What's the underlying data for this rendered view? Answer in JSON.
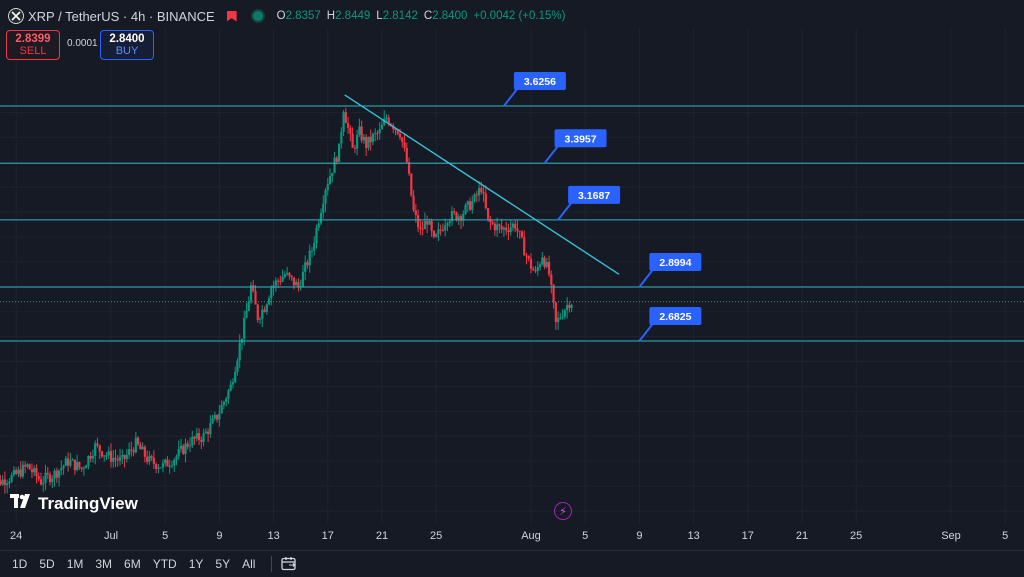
{
  "header": {
    "symbol": "XRP / TetherUS · 4h · BINANCE",
    "ohlc": [
      {
        "k": "O",
        "v": "2.8357"
      },
      {
        "k": "H",
        "v": "2.8449"
      },
      {
        "k": "L",
        "v": "2.8142"
      },
      {
        "k": "C",
        "v": "2.8400"
      },
      {
        "k": "",
        "v": "+0.0042 (+0.15%)"
      }
    ]
  },
  "trade": {
    "sell_price": "2.8399",
    "sell_label": "SELL",
    "spread": "0.0001",
    "buy_price": "2.8400",
    "buy_label": "BUY"
  },
  "branding": {
    "logo_text": "TradingView"
  },
  "toolbar": {
    "timeframes": [
      "1D",
      "5D",
      "1M",
      "3M",
      "6M",
      "YTD",
      "1Y",
      "5Y",
      "All"
    ],
    "icons": [
      "calendar-range-icon"
    ]
  },
  "colors": {
    "background": "#161a25",
    "up": "#089981",
    "down": "#f23645",
    "level_line": "#2fb5c5",
    "label_bg": "#2962ff"
  },
  "chart_data": {
    "type": "candlestick",
    "x_tick_labels": [
      "24",
      "Jul",
      "5",
      "9",
      "13",
      "17",
      "21",
      "25",
      "Aug",
      "5",
      "9",
      "13",
      "17",
      "21",
      "25",
      "Sep",
      "5"
    ],
    "x_tick_dates": [
      "2025-06-24",
      "2025-07-01",
      "2025-07-05",
      "2025-07-09",
      "2025-07-13",
      "2025-07-17",
      "2025-07-21",
      "2025-07-25",
      "2025-08-01",
      "2025-08-05",
      "2025-08-09",
      "2025-08-13",
      "2025-08-17",
      "2025-08-21",
      "2025-08-25",
      "2025-09-01",
      "2025-09-05"
    ],
    "y_range": [
      2.0,
      3.7
    ],
    "horizontal_levels": [
      {
        "value": 3.6256,
        "label": "3.6256",
        "label_date": "2025-07-30"
      },
      {
        "value": 3.3957,
        "label": "3.3957",
        "label_date": "2025-08-02"
      },
      {
        "value": 3.1687,
        "label": "3.1687",
        "label_date": "2025-08-03"
      },
      {
        "value": 2.8994,
        "label": "2.8994",
        "label_date": "2025-08-09"
      },
      {
        "value": 2.6825,
        "label": "2.6825",
        "label_date": "2025-08-09"
      }
    ],
    "trendline": {
      "start": {
        "date": "2025-07-18T06:00",
        "value": 3.67
      },
      "end": {
        "date": "2025-08-07T12:00",
        "value": 2.95
      }
    },
    "last_price": 2.84,
    "price_path": [
      [
        "2025-06-22T00:00",
        2.08
      ],
      [
        "2025-06-23T00:00",
        2.12
      ],
      [
        "2025-06-24T00:00",
        2.14
      ],
      [
        "2025-06-25T00:00",
        2.18
      ],
      [
        "2025-06-26T00:00",
        2.12
      ],
      [
        "2025-06-27T00:00",
        2.15
      ],
      [
        "2025-06-28T00:00",
        2.2
      ],
      [
        "2025-06-29T00:00",
        2.17
      ],
      [
        "2025-06-30T00:00",
        2.26
      ],
      [
        "2025-07-01T00:00",
        2.22
      ],
      [
        "2025-07-02T00:00",
        2.2
      ],
      [
        "2025-07-03T00:00",
        2.27
      ],
      [
        "2025-07-04T00:00",
        2.2
      ],
      [
        "2025-07-05T00:00",
        2.18
      ],
      [
        "2025-07-06T00:00",
        2.22
      ],
      [
        "2025-07-07T00:00",
        2.28
      ],
      [
        "2025-07-08T00:00",
        2.3
      ],
      [
        "2025-07-09T00:00",
        2.38
      ],
      [
        "2025-07-10T00:00",
        2.5
      ],
      [
        "2025-07-11T00:00",
        2.75
      ],
      [
        "2025-07-11T12:00",
        2.9
      ],
      [
        "2025-07-12T00:00",
        2.78
      ],
      [
        "2025-07-12T12:00",
        2.82
      ],
      [
        "2025-07-13T00:00",
        2.9
      ],
      [
        "2025-07-14T00:00",
        2.95
      ],
      [
        "2025-07-15T00:00",
        2.9
      ],
      [
        "2025-07-16T00:00",
        3.05
      ],
      [
        "2025-07-17T00:00",
        3.3
      ],
      [
        "2025-07-18T00:00",
        3.45
      ],
      [
        "2025-07-18T08:00",
        3.62
      ],
      [
        "2025-07-19T00:00",
        3.45
      ],
      [
        "2025-07-19T12:00",
        3.52
      ],
      [
        "2025-07-20T00:00",
        3.47
      ],
      [
        "2025-07-20T12:00",
        3.5
      ],
      [
        "2025-07-21T00:00",
        3.52
      ],
      [
        "2025-07-21T12:00",
        3.58
      ],
      [
        "2025-07-22T00:00",
        3.55
      ],
      [
        "2025-07-22T12:00",
        3.52
      ],
      [
        "2025-07-23T00:00",
        3.4
      ],
      [
        "2025-07-23T12:00",
        3.2
      ],
      [
        "2025-07-24T00:00",
        3.12
      ],
      [
        "2025-07-24T12:00",
        3.17
      ],
      [
        "2025-07-25T00:00",
        3.08
      ],
      [
        "2025-07-26T00:00",
        3.18
      ],
      [
        "2025-07-27T00:00",
        3.19
      ],
      [
        "2025-07-28T00:00",
        3.25
      ],
      [
        "2025-07-28T12:00",
        3.3
      ],
      [
        "2025-07-29T00:00",
        3.16
      ],
      [
        "2025-07-30T00:00",
        3.13
      ],
      [
        "2025-07-31T00:00",
        3.15
      ],
      [
        "2025-08-01T00:00",
        3.0
      ],
      [
        "2025-08-01T12:00",
        2.95
      ],
      [
        "2025-08-02T00:00",
        3.03
      ],
      [
        "2025-08-02T12:00",
        2.95
      ],
      [
        "2025-08-03T00:00",
        2.75
      ],
      [
        "2025-08-03T12:00",
        2.8
      ],
      [
        "2025-08-04T00:00",
        2.84
      ]
    ]
  }
}
